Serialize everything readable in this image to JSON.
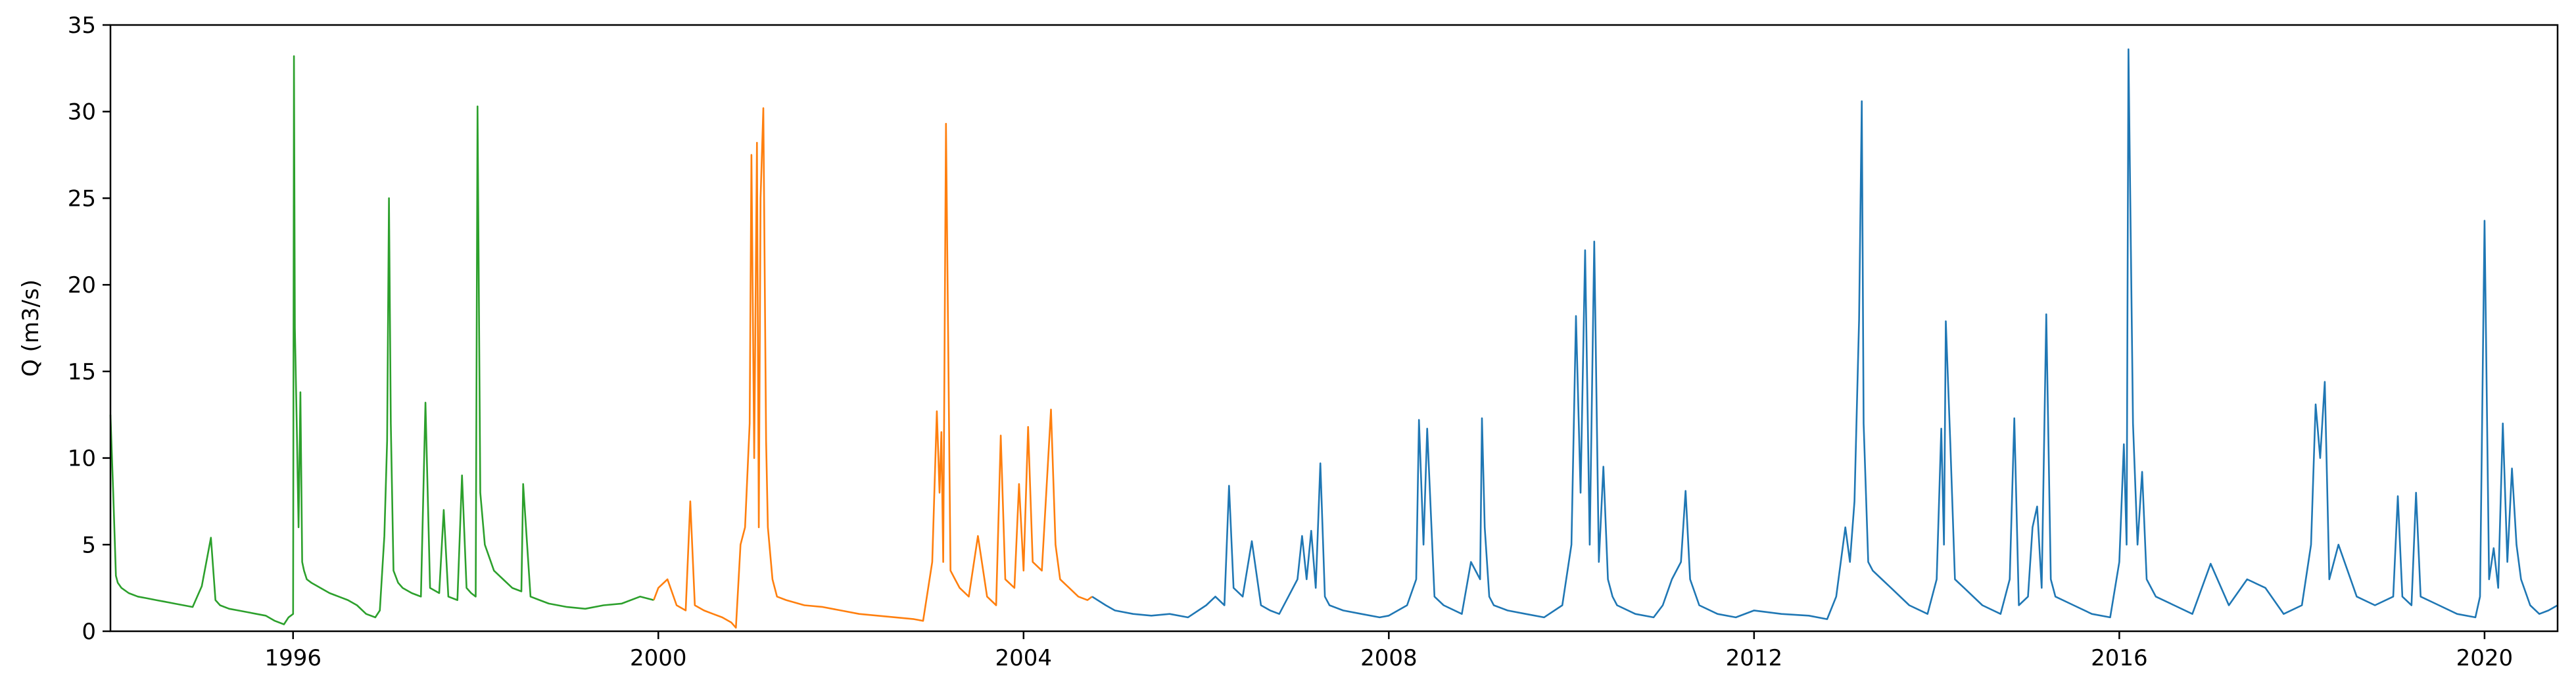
{
  "chart_data": {
    "type": "line",
    "title": "",
    "xlabel": "",
    "ylabel": "Q (m3/s)",
    "xlim": [
      1994.0,
      2020.8
    ],
    "ylim": [
      0,
      35
    ],
    "x_ticks": [
      1996,
      2000,
      2004,
      2008,
      2012,
      2016,
      2020
    ],
    "y_ticks": [
      0,
      5,
      10,
      15,
      20,
      25,
      30,
      35
    ],
    "grid": false,
    "legend": "none",
    "series": [
      {
        "color": "#2ca02c",
        "x": [
          1994.0,
          1994.03,
          1994.06,
          1994.08,
          1994.12,
          1994.2,
          1994.3,
          1994.4,
          1994.5,
          1994.6,
          1994.7,
          1994.8,
          1994.9,
          1995.0,
          1995.1,
          1995.15,
          1995.2,
          1995.3,
          1995.4,
          1995.5,
          1995.6,
          1995.7,
          1995.8,
          1995.9,
          1995.95,
          1996.0,
          1996.01,
          1996.02,
          1996.04,
          1996.06,
          1996.08,
          1996.1,
          1996.12,
          1996.15,
          1996.2,
          1996.3,
          1996.4,
          1996.5,
          1996.6,
          1996.7,
          1996.8,
          1996.9,
          1996.95,
          1997.0,
          1997.03,
          1997.05,
          1997.07,
          1997.1,
          1997.15,
          1997.2,
          1997.3,
          1997.4,
          1997.45,
          1997.5,
          1997.6,
          1997.65,
          1997.7,
          1997.8,
          1997.85,
          1997.9,
          1997.95,
          1998.0,
          1998.02,
          1998.05,
          1998.1,
          1998.2,
          1998.3,
          1998.4,
          1998.5,
          1998.52,
          1998.6,
          1998.7,
          1998.8,
          1998.9,
          1999.0,
          1999.2,
          1999.4,
          1999.6,
          1999.8,
          1999.95
        ],
        "y": [
          12.5,
          8.0,
          3.2,
          2.8,
          2.5,
          2.2,
          2.0,
          1.9,
          1.8,
          1.7,
          1.6,
          1.5,
          1.4,
          2.6,
          5.4,
          1.8,
          1.5,
          1.3,
          1.2,
          1.1,
          1.0,
          0.9,
          0.6,
          0.4,
          0.8,
          1.0,
          33.2,
          17.5,
          12.0,
          6.0,
          13.8,
          4.0,
          3.5,
          3.0,
          2.8,
          2.5,
          2.2,
          2.0,
          1.8,
          1.5,
          1.0,
          0.8,
          1.2,
          5.5,
          11.0,
          25.0,
          12.0,
          3.5,
          2.8,
          2.5,
          2.2,
          2.0,
          13.2,
          2.5,
          2.2,
          7.0,
          2.0,
          1.8,
          9.0,
          2.5,
          2.2,
          2.0,
          30.3,
          8.0,
          5.0,
          3.5,
          3.0,
          2.5,
          2.3,
          8.5,
          2.0,
          1.8,
          1.6,
          1.5,
          1.4,
          1.3,
          1.5,
          1.6,
          2.0,
          1.8
        ]
      },
      {
        "color": "#ff7f0e",
        "x": [
          1999.95,
          2000.0,
          2000.1,
          2000.2,
          2000.3,
          2000.35,
          2000.4,
          2000.5,
          2000.6,
          2000.7,
          2000.8,
          2000.85,
          2000.9,
          2000.95,
          2001.0,
          2001.02,
          2001.05,
          2001.08,
          2001.1,
          2001.12,
          2001.15,
          2001.18,
          2001.2,
          2001.25,
          2001.3,
          2001.4,
          2001.6,
          2001.8,
          2002.0,
          2002.2,
          2002.4,
          2002.6,
          2002.8,
          2002.9,
          2003.0,
          2003.05,
          2003.08,
          2003.1,
          2003.12,
          2003.15,
          2003.2,
          2003.25,
          2003.3,
          2003.4,
          2003.5,
          2003.6,
          2003.7,
          2003.75,
          2003.8,
          2003.9,
          2003.95,
          2004.0,
          2004.05,
          2004.1,
          2004.2,
          2004.3,
          2004.35,
          2004.4,
          2004.5,
          2004.6,
          2004.7,
          2004.75
        ],
        "y": [
          1.8,
          2.5,
          3.0,
          1.5,
          1.2,
          7.5,
          1.5,
          1.2,
          1.0,
          0.8,
          0.5,
          0.2,
          5.0,
          6.0,
          12.0,
          27.5,
          10.0,
          28.2,
          6.0,
          25.0,
          30.2,
          11.0,
          6.0,
          3.0,
          2.0,
          1.8,
          1.5,
          1.4,
          1.2,
          1.0,
          0.9,
          0.8,
          0.7,
          0.6,
          4.0,
          12.7,
          8.0,
          11.5,
          4.0,
          29.3,
          3.5,
          3.0,
          2.5,
          2.0,
          5.5,
          2.0,
          1.5,
          11.3,
          3.0,
          2.5,
          8.5,
          3.5,
          11.8,
          4.0,
          3.5,
          12.8,
          5.0,
          3.0,
          2.5,
          2.0,
          1.8,
          2.0
        ]
      },
      {
        "color": "#1f77b4",
        "x": [
          2004.75,
          2004.9,
          2005.0,
          2005.2,
          2005.4,
          2005.6,
          2005.8,
          2006.0,
          2006.1,
          2006.2,
          2006.25,
          2006.3,
          2006.4,
          2006.5,
          2006.6,
          2006.7,
          2006.8,
          2006.9,
          2007.0,
          2007.05,
          2007.1,
          2007.15,
          2007.2,
          2007.25,
          2007.3,
          2007.35,
          2007.5,
          2007.7,
          2007.9,
          2008.0,
          2008.2,
          2008.3,
          2008.33,
          2008.38,
          2008.42,
          2008.5,
          2008.6,
          2008.8,
          2008.9,
          2009.0,
          2009.02,
          2009.05,
          2009.1,
          2009.15,
          2009.3,
          2009.5,
          2009.7,
          2009.9,
          2010.0,
          2010.05,
          2010.1,
          2010.15,
          2010.2,
          2010.25,
          2010.3,
          2010.35,
          2010.4,
          2010.45,
          2010.5,
          2010.7,
          2010.9,
          2011.0,
          2011.1,
          2011.2,
          2011.25,
          2011.3,
          2011.4,
          2011.6,
          2011.8,
          2012.0,
          2012.3,
          2012.6,
          2012.8,
          2012.9,
          2013.0,
          2013.05,
          2013.1,
          2013.15,
          2013.18,
          2013.2,
          2013.25,
          2013.3,
          2013.4,
          2013.5,
          2013.7,
          2013.9,
          2014.0,
          2014.05,
          2014.08,
          2014.1,
          2014.15,
          2014.2,
          2014.3,
          2014.5,
          2014.7,
          2014.8,
          2014.85,
          2014.9,
          2015.0,
          2015.05,
          2015.1,
          2015.15,
          2015.2,
          2015.25,
          2015.3,
          2015.5,
          2015.7,
          2015.9,
          2016.0,
          2016.05,
          2016.08,
          2016.1,
          2016.15,
          2016.2,
          2016.25,
          2016.3,
          2016.4,
          2016.6,
          2016.8,
          2017.0,
          2017.2,
          2017.4,
          2017.6,
          2017.8,
          2018.0,
          2018.1,
          2018.15,
          2018.2,
          2018.25,
          2018.3,
          2018.4,
          2018.6,
          2018.8,
          2019.0,
          2019.05,
          2019.1,
          2019.2,
          2019.25,
          2019.3,
          2019.5,
          2019.7,
          2019.9,
          2019.95,
          2020.0,
          2020.05,
          2020.1,
          2020.15,
          2020.2,
          2020.25,
          2020.3,
          2020.35,
          2020.4,
          2020.5,
          2020.6,
          2020.7,
          2020.8
        ],
        "y": [
          2.0,
          1.5,
          1.2,
          1.0,
          0.9,
          1.0,
          0.8,
          1.5,
          2.0,
          1.5,
          8.4,
          2.5,
          2.0,
          5.2,
          1.5,
          1.2,
          1.0,
          2.0,
          3.0,
          5.5,
          3.0,
          5.8,
          2.5,
          9.7,
          2.0,
          1.5,
          1.2,
          1.0,
          0.8,
          0.9,
          1.5,
          3.0,
          12.2,
          5.0,
          11.7,
          2.0,
          1.5,
          1.0,
          4.0,
          3.0,
          12.3,
          6.0,
          2.0,
          1.5,
          1.2,
          1.0,
          0.8,
          1.5,
          5.0,
          18.2,
          8.0,
          22.0,
          5.0,
          22.5,
          4.0,
          9.5,
          3.0,
          2.0,
          1.5,
          1.0,
          0.8,
          1.5,
          3.0,
          4.0,
          8.1,
          3.0,
          1.5,
          1.0,
          0.8,
          1.2,
          1.0,
          0.9,
          0.7,
          2.0,
          6.0,
          4.0,
          7.5,
          18.0,
          30.6,
          12.0,
          4.0,
          3.5,
          3.0,
          2.5,
          1.5,
          1.0,
          3.0,
          11.7,
          5.0,
          17.9,
          10.8,
          3.0,
          2.5,
          1.5,
          1.0,
          3.0,
          12.3,
          1.5,
          2.0,
          6.0,
          7.2,
          2.5,
          18.3,
          3.0,
          2.0,
          1.5,
          1.0,
          0.8,
          4.0,
          10.8,
          5.0,
          33.6,
          12.0,
          5.0,
          9.2,
          3.0,
          2.0,
          1.5,
          1.0,
          3.9,
          1.5,
          3.0,
          2.5,
          1.0,
          1.5,
          5.0,
          13.1,
          10.0,
          14.4,
          3.0,
          5.0,
          2.0,
          1.5,
          2.0,
          7.8,
          2.0,
          1.5,
          8.0,
          2.0,
          1.5,
          1.0,
          0.8,
          2.0,
          23.7,
          3.0,
          4.8,
          2.5,
          12.0,
          4.0,
          9.4,
          5.0,
          3.0,
          1.5,
          1.0,
          1.2,
          1.5
        ]
      }
    ]
  }
}
